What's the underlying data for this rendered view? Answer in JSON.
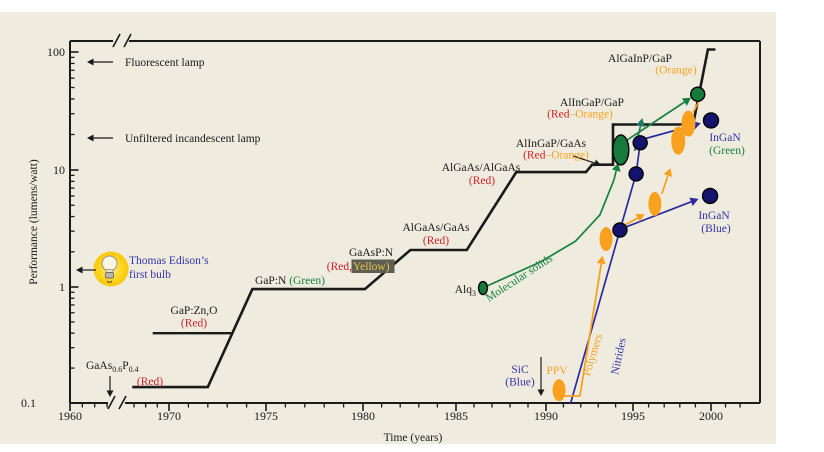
{
  "colors": {
    "black": "#1a1a1a",
    "red": "#d42127",
    "green": "#16813f",
    "orange": "#f9a11f",
    "blue": "#3434a8",
    "navy_marker": "#14146e",
    "green_marker": "#157a3c",
    "teal": "#1d7a60",
    "yellow": "#e8c93f",
    "yellow_bg": "#5e5e54",
    "panel": "#efecdf",
    "line_black": "#1a1a1a",
    "nitride_line": "#2a2aa0"
  },
  "axes": {
    "x_title": "Time  (years)",
    "y_title": "Performance  (lumens/watt)",
    "x_ticks": [
      {
        "label": "1960",
        "year": 1960
      },
      {
        "label": "1970",
        "year": 1970
      },
      {
        "label": "1975",
        "year": 1975
      },
      {
        "label": "1980",
        "year": 1980
      },
      {
        "label": "1985",
        "year": 1985
      },
      {
        "label": "1990",
        "year": 1990
      },
      {
        "label": "1995",
        "year": 1995
      },
      {
        "label": "2000",
        "year": 2000
      }
    ],
    "y_ticks": [
      {
        "label": "100",
        "value": 100
      },
      {
        "label": "10",
        "value": 10
      },
      {
        "label": "1",
        "value": 1
      },
      {
        "label": "0.1",
        "value": 0.1
      }
    ],
    "x_break_years": [
      1963.5,
      1966.5
    ],
    "y_scale": "log"
  },
  "chart_data": {
    "type": "line",
    "xlabel": "Time (years)",
    "ylabel": "Performance (lumens/watt)",
    "xlim": [
      1960,
      2002
    ],
    "ylim": [
      0.1,
      120
    ],
    "reference_levels": {
      "fluorescent_lamp": 85,
      "unfiltered_incandescent_lamp": 19,
      "edison_first_bulb": 1.4
    },
    "series": [
      {
        "id": "inorganic-led-staircase",
        "color": "line_black",
        "width": 2.6,
        "arrow": false,
        "points": [
          [
            1966.85,
            0.137
          ],
          [
            1972.0,
            0.137
          ],
          [
            1974.3,
            0.96
          ],
          [
            1980.1,
            0.96
          ],
          [
            1982.55,
            2.07
          ],
          [
            1985.6,
            2.07
          ],
          [
            1988.35,
            9.6
          ],
          [
            1992.3,
            9.6
          ],
          [
            1992.65,
            11.1
          ],
          [
            1993.85,
            11.1
          ],
          [
            1993.85,
            24.3
          ],
          [
            1998.85,
            24.3
          ],
          [
            1999.8,
            105
          ],
          [
            2000.3,
            105
          ]
        ]
      },
      {
        "id": "gap-zno-step",
        "color": "line_black",
        "width": 2.3,
        "arrow": false,
        "points": [
          [
            1968.6,
            0.4
          ],
          [
            1973.2,
            0.4
          ]
        ]
      },
      {
        "id": "molecular-solids-line",
        "color": "green",
        "width": 1.7,
        "arrow": true,
        "points": [
          [
            1986.6,
            1.0
          ],
          [
            1989.7,
            1.64
          ],
          [
            1991.7,
            2.47
          ],
          [
            1993.1,
            4.13
          ],
          [
            1993.9,
            8.2
          ],
          [
            1994.15,
            11.5
          ]
        ]
      },
      {
        "id": "nitrides-line",
        "color": "nitride_line",
        "width": 1.7,
        "arrow": false,
        "points": [
          [
            1991.4,
            0.098
          ],
          [
            1994.25,
            3.07
          ],
          [
            1995.2,
            9.25
          ],
          [
            1995.46,
            17.0
          ]
        ]
      },
      {
        "id": "polymers-line",
        "color": "orange",
        "width": 1.8,
        "arrow": true,
        "points": [
          [
            1991.0,
            0.115
          ],
          [
            1991.95,
            0.115
          ],
          [
            1993.25,
            1.85
          ]
        ]
      }
    ],
    "arrows": [
      {
        "id": "molecular-to-dot",
        "color": "green",
        "from": [
          1994.55,
          17.5
        ],
        "to": [
          1998.72,
          41.0
        ],
        "head": true
      },
      {
        "id": "teal-up",
        "color": "teal",
        "from": [
          1995.1,
          14.5
        ],
        "to": [
          1995.6,
          27.5
        ],
        "head": true
      },
      {
        "id": "nitride-to-ingan-blue",
        "color": "nitride_line",
        "from": [
          1994.6,
          3.26
        ],
        "to": [
          1999.2,
          5.66
        ],
        "head": true
      },
      {
        "id": "nitride-to-ingan-green",
        "color": "nitride_line",
        "from": [
          1995.75,
          18.4
        ],
        "to": [
          1999.35,
          24.9
        ],
        "head": true
      },
      {
        "id": "polymer-arrow-1",
        "color": "orange",
        "from": [
          1993.8,
          2.95
        ],
        "to": [
          1995.75,
          4.2
        ],
        "head": true
      },
      {
        "id": "polymer-arrow-2",
        "color": "orange",
        "from": [
          1996.85,
          6.25
        ],
        "to": [
          1997.4,
          10.4
        ],
        "head": true
      },
      {
        "id": "polymer-segment-3",
        "color": "orange",
        "from": [
          1998.85,
          30.7
        ],
        "to": [
          1999.3,
          39.8
        ],
        "head": false
      }
    ],
    "markers": [
      {
        "id": "alq3-dot",
        "color": "green_marker",
        "year": 1986.5,
        "value": 0.98,
        "rx": 4.5,
        "ry": 6.5
      },
      {
        "id": "molecular-big-ellipse",
        "color": "green_marker",
        "year": 1994.3,
        "value": 14.8,
        "rx": 8,
        "ry": 15
      },
      {
        "id": "green-top-dot",
        "color": "green_marker",
        "year": 1999.15,
        "value": 43.9,
        "rx": 7,
        "ry": 7
      },
      {
        "id": "ppv-ellipse",
        "color": "orange",
        "year": 1990.75,
        "value": 0.129,
        "rx": 6.5,
        "ry": 11
      },
      {
        "id": "polymer-ellipse-1",
        "color": "orange",
        "year": 1993.45,
        "value": 2.57,
        "rx": 6.5,
        "ry": 12
      },
      {
        "id": "polymer-ellipse-2",
        "color": "orange",
        "year": 1996.4,
        "value": 5.13,
        "rx": 6.5,
        "ry": 12
      },
      {
        "id": "polymer-ellipse-3",
        "color": "orange",
        "year": 1997.9,
        "value": 17.7,
        "rx": 7,
        "ry": 14
      },
      {
        "id": "polymer-ellipse-4",
        "color": "orange",
        "year": 1998.55,
        "value": 24.7,
        "rx": 7,
        "ry": 13
      },
      {
        "id": "nitride-dot-1",
        "color": "navy_marker",
        "year": 1994.25,
        "value": 3.07,
        "rx": 7,
        "ry": 7
      },
      {
        "id": "nitride-dot-2",
        "color": "navy_marker",
        "year": 1995.2,
        "value": 9.25,
        "rx": 7,
        "ry": 7
      },
      {
        "id": "nitride-dot-3",
        "color": "navy_marker",
        "year": 1995.46,
        "value": 17.0,
        "rx": 7,
        "ry": 7
      },
      {
        "id": "ingan-blue-dot",
        "color": "navy_marker",
        "year": 1999.94,
        "value": 6.0,
        "rx": 7.5,
        "ry": 7.5
      },
      {
        "id": "ingan-green-dot",
        "color": "navy_marker",
        "year": 2000.0,
        "value": 26.3,
        "rx": 7.5,
        "ry": 7.5
      }
    ]
  },
  "annotations": [
    {
      "id": "fluorescent_lamp",
      "parts": [
        {
          "t": "Fluorescent lamp",
          "c": "black"
        }
      ]
    },
    {
      "id": "incandescent_lamp",
      "parts": [
        {
          "t": "Unfiltered incandescent lamp",
          "c": "black"
        }
      ]
    },
    {
      "id": "edison_line1",
      "parts": [
        {
          "t": "Thomas Edison’s",
          "c": "blue"
        }
      ]
    },
    {
      "id": "edison_line2",
      "parts": [
        {
          "t": "first bulb",
          "c": "blue"
        }
      ]
    },
    {
      "id": "gaasp_formula",
      "parts": [
        {
          "t": "GaAs",
          "c": "black"
        },
        {
          "t": "0.6",
          "c": "black",
          "sub": true
        },
        {
          "t": "P",
          "c": "black"
        },
        {
          "t": "0.4",
          "c": "black",
          "sub": true
        }
      ]
    },
    {
      "id": "gaasp_red",
      "parts": [
        {
          "t": "(Red)",
          "c": "red"
        }
      ]
    },
    {
      "id": "gap_zno_name",
      "parts": [
        {
          "t": "GaP:Zn,O",
          "c": "black"
        }
      ]
    },
    {
      "id": "gap_zno_color",
      "parts": [
        {
          "t": "(Red)",
          "c": "red"
        }
      ]
    },
    {
      "id": "gap_n",
      "parts": [
        {
          "t": "GaP:N ",
          "c": "black"
        },
        {
          "t": "(Green)",
          "c": "green"
        }
      ]
    },
    {
      "id": "gaasp_n_name",
      "parts": [
        {
          "t": "GaAsP:N",
          "c": "black"
        }
      ]
    },
    {
      "id": "gaasp_n_red",
      "parts": [
        {
          "t": "(Red,",
          "c": "red"
        }
      ]
    },
    {
      "id": "gaasp_n_yellow",
      "parts": [
        {
          "t": "Yellow)",
          "c": "yellow"
        }
      ]
    },
    {
      "id": "algaas_gaas_name",
      "parts": [
        {
          "t": "AlGaAs/GaAs",
          "c": "black"
        }
      ]
    },
    {
      "id": "algaas_gaas_color",
      "parts": [
        {
          "t": "(Red)",
          "c": "red"
        }
      ]
    },
    {
      "id": "algaas_algaas_name",
      "parts": [
        {
          "t": "AlGaAs/AlGaAs",
          "c": "black"
        }
      ]
    },
    {
      "id": "algaas_algaas_color",
      "parts": [
        {
          "t": "(Red)",
          "c": "red"
        }
      ]
    },
    {
      "id": "alingap_gaas_name",
      "parts": [
        {
          "t": "AlInGaP/GaAs",
          "c": "black"
        }
      ]
    },
    {
      "id": "alingap_gaas_color",
      "parts": [
        {
          "t": "(Red",
          "c": "red"
        },
        {
          "t": "–Orange)",
          "c": "orange"
        }
      ]
    },
    {
      "id": "alingap_gap_name",
      "parts": [
        {
          "t": "AlInGaP/GaP",
          "c": "black"
        }
      ]
    },
    {
      "id": "alingap_gap_color",
      "parts": [
        {
          "t": "(Red",
          "c": "red"
        },
        {
          "t": "–Orange)",
          "c": "orange"
        }
      ]
    },
    {
      "id": "algainp_gap_name",
      "parts": [
        {
          "t": "AlGaInP/GaP",
          "c": "black"
        }
      ]
    },
    {
      "id": "algainp_gap_color",
      "parts": [
        {
          "t": "(Orange)",
          "c": "orange"
        }
      ]
    },
    {
      "id": "alq3",
      "parts": [
        {
          "t": "Alq",
          "c": "black"
        },
        {
          "t": "3",
          "c": "black",
          "sub": true
        }
      ]
    },
    {
      "id": "molecular_solids",
      "parts": [
        {
          "t": "Molecular solids",
          "c": "green"
        }
      ]
    },
    {
      "id": "sic_name",
      "parts": [
        {
          "t": "SiC",
          "c": "blue"
        }
      ]
    },
    {
      "id": "sic_color",
      "parts": [
        {
          "t": "(Blue)",
          "c": "blue"
        }
      ]
    },
    {
      "id": "ppv",
      "parts": [
        {
          "t": "PPV",
          "c": "orange"
        }
      ]
    },
    {
      "id": "polymers",
      "parts": [
        {
          "t": "Polymers",
          "c": "orange"
        }
      ]
    },
    {
      "id": "nitrides",
      "parts": [
        {
          "t": "Nitrides",
          "c": "blue"
        }
      ]
    },
    {
      "id": "ingan_green_name",
      "parts": [
        {
          "t": "InGaN",
          "c": "blue"
        }
      ]
    },
    {
      "id": "ingan_green_color",
      "parts": [
        {
          "t": "(Green)",
          "c": "green"
        }
      ]
    },
    {
      "id": "ingan_blue_name",
      "parts": [
        {
          "t": "InGaN",
          "c": "blue"
        }
      ]
    },
    {
      "id": "ingan_blue_color",
      "parts": [
        {
          "t": "(Blue)",
          "c": "blue"
        }
      ]
    },
    {
      "id": "x_title",
      "parts": [
        {
          "t": "Time  (years)",
          "c": "black"
        }
      ]
    },
    {
      "id": "y_title",
      "parts": [
        {
          "t": "Performance  (lumens/watt)",
          "c": "black"
        }
      ]
    }
  ]
}
